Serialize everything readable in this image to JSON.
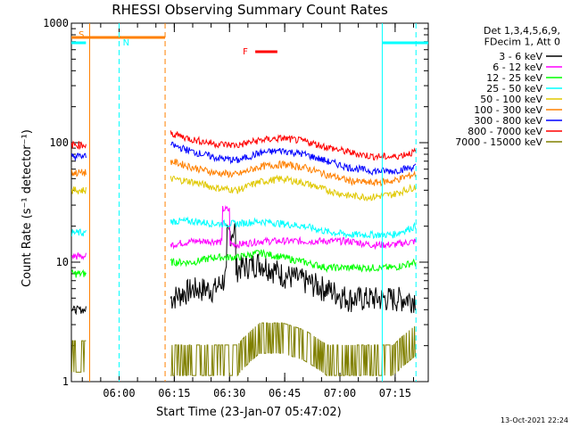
{
  "chart_data": {
    "type": "line",
    "title": "RHESSI Observing Summary Count Rates",
    "xlabel": "Start Time (23-Jan-07 05:47:02)",
    "ylabel": "Count Rate (s⁻¹ detector⁻¹)",
    "x_ticks": [
      "06:00",
      "06:15",
      "06:30",
      "06:45",
      "07:00",
      "07:15"
    ],
    "y_ticks": [
      "1",
      "10",
      "100",
      "1000"
    ],
    "y_scale": "log",
    "ylim": [
      1,
      1000
    ],
    "xlim": [
      "05:47:02",
      "07:24:00"
    ],
    "legend_header": [
      "Det 1,3,4,5,6,9,",
      "FDecim 1, Att 0"
    ],
    "series": [
      {
        "name": "3 - 6 keV",
        "color": "#000000",
        "level": [
          5,
          6,
          6,
          9,
          10,
          8,
          7,
          6,
          5,
          5,
          5,
          5
        ]
      },
      {
        "name": "6 - 12 keV",
        "color": "#ff00ff",
        "level": [
          14,
          15,
          15,
          14,
          15,
          15,
          15,
          15,
          15,
          14,
          14,
          15
        ]
      },
      {
        "name": "12 - 25 keV",
        "color": "#00ff00",
        "level": [
          10,
          10,
          11,
          11,
          12,
          11,
          10,
          9,
          9,
          9,
          9,
          10
        ]
      },
      {
        "name": "25 - 50 keV",
        "color": "#00ffff",
        "level": [
          22,
          22,
          21,
          21,
          22,
          21,
          20,
          18,
          17,
          17,
          17,
          20
        ]
      },
      {
        "name": "50 - 100 keV",
        "color": "#e0c800",
        "level": [
          50,
          47,
          42,
          40,
          47,
          50,
          46,
          40,
          36,
          35,
          37,
          43
        ]
      },
      {
        "name": "100 - 300 keV",
        "color": "#ff8000",
        "level": [
          70,
          62,
          56,
          54,
          63,
          66,
          62,
          54,
          48,
          46,
          48,
          55
        ]
      },
      {
        "name": "300 - 800 keV",
        "color": "#0000ff",
        "level": [
          96,
          84,
          75,
          71,
          82,
          86,
          80,
          70,
          62,
          58,
          58,
          63
        ]
      },
      {
        "name": "800 - 7000 keV",
        "color": "#ff0000",
        "level": [
          120,
          106,
          98,
          95,
          105,
          109,
          103,
          92,
          83,
          77,
          76,
          84
        ]
      },
      {
        "name": "7000 - 15000 keV",
        "color": "#808000",
        "level": [
          1.5,
          1.5,
          1.5,
          1.5,
          2.3,
          2.3,
          2.0,
          1.5,
          1.5,
          1.5,
          1.5,
          2.2
        ]
      }
    ],
    "flags": [
      {
        "label": "S",
        "color": "#ff8000"
      },
      {
        "label": "N",
        "color": "#00ffff"
      },
      {
        "label": "F",
        "color": "#ff0000"
      }
    ],
    "timestamp": "13-Oct-2021 22:24"
  }
}
